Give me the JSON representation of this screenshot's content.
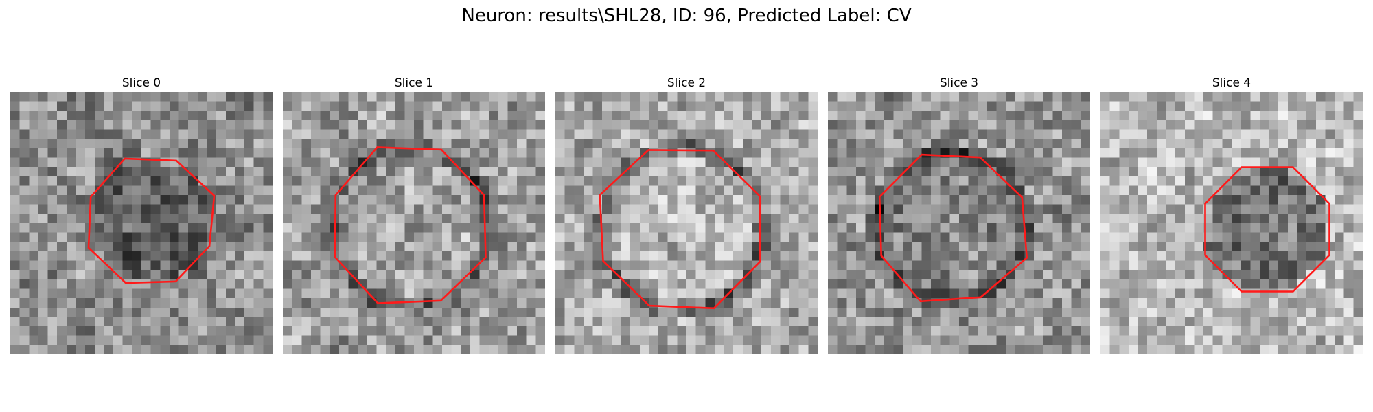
{
  "figure": {
    "title": "Neuron: results\\SHL28, ID: 96, Predicted Label: CV"
  },
  "colors": {
    "contour": "#ff1a1a",
    "background": "#ffffff"
  },
  "grid": {
    "cells": 28
  },
  "slices": [
    {
      "title": "Slice 0",
      "tone": {
        "base": 0.56,
        "blob_depth": -0.2,
        "ring_depth": -0.05,
        "seed": 11
      }
    },
    {
      "title": "Slice 1",
      "tone": {
        "base": 0.62,
        "blob_depth": 0.02,
        "ring_depth": -0.32,
        "seed": 23
      }
    },
    {
      "title": "Slice 2",
      "tone": {
        "base": 0.66,
        "blob_depth": 0.06,
        "ring_depth": -0.3,
        "seed": 37
      }
    },
    {
      "title": "Slice 3",
      "tone": {
        "base": 0.58,
        "blob_depth": -0.05,
        "ring_depth": -0.34,
        "seed": 41
      }
    },
    {
      "title": "Slice 4",
      "tone": {
        "base": 0.72,
        "blob_depth": -0.26,
        "ring_depth": 0.02,
        "seed": 53
      }
    }
  ]
}
